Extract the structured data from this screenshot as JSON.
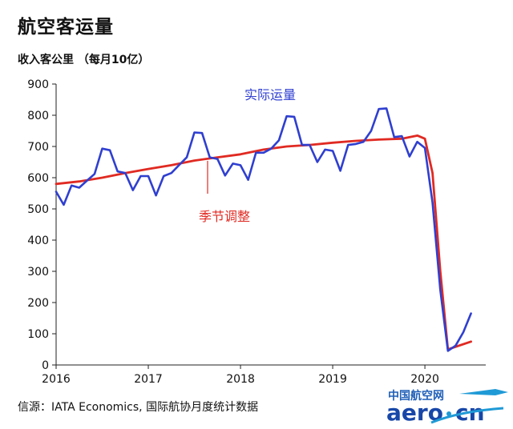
{
  "title": "航空客运量",
  "source": "信源：IATA Economics, 国际航协月度统计数据",
  "logo": {
    "top_text": "中国航空网",
    "bottom_text": "aero.cn"
  },
  "colors": {
    "actual": "#2f3fd0",
    "seasonal": "#e02a22",
    "axis": "#222222"
  },
  "chart_data": {
    "type": "line",
    "ylabel": "收入客公里 （每月10亿）",
    "ylim": [
      0,
      900
    ],
    "yticks": [
      "0",
      "100",
      "200",
      "300",
      "400",
      "500",
      "600",
      "700",
      "800",
      "900"
    ],
    "xlim": [
      2016,
      2020.66
    ],
    "xticks": [
      {
        "value": 2016,
        "label": "2016"
      },
      {
        "value": 2017,
        "label": "2017"
      },
      {
        "value": 2018,
        "label": "2018"
      },
      {
        "value": 2019,
        "label": "2019"
      },
      {
        "value": 2020,
        "label": "2020"
      }
    ],
    "grid": false,
    "series": [
      {
        "name": "实际运量",
        "color": "#2f3fd0",
        "x": [
          2016.0,
          2016.083,
          2016.167,
          2016.25,
          2016.333,
          2016.417,
          2016.5,
          2016.583,
          2016.667,
          2016.75,
          2016.833,
          2016.917,
          2017.0,
          2017.083,
          2017.167,
          2017.25,
          2017.333,
          2017.417,
          2017.5,
          2017.583,
          2017.667,
          2017.75,
          2017.833,
          2017.917,
          2018.0,
          2018.083,
          2018.167,
          2018.25,
          2018.333,
          2018.417,
          2018.5,
          2018.583,
          2018.667,
          2018.75,
          2018.833,
          2018.917,
          2019.0,
          2019.083,
          2019.167,
          2019.25,
          2019.333,
          2019.417,
          2019.5,
          2019.583,
          2019.667,
          2019.75,
          2019.833,
          2019.917,
          2020.0,
          2020.083,
          2020.167,
          2020.25,
          2020.333,
          2020.417,
          2020.5
        ],
        "y": [
          555,
          513,
          575,
          568,
          590,
          612,
          693,
          688,
          620,
          615,
          560,
          605,
          605,
          543,
          605,
          615,
          640,
          665,
          745,
          743,
          665,
          660,
          607,
          645,
          640,
          593,
          680,
          680,
          693,
          720,
          797,
          795,
          705,
          705,
          650,
          690,
          686,
          622,
          705,
          708,
          715,
          750,
          820,
          822,
          730,
          733,
          668,
          715,
          695,
          520,
          240,
          45,
          62,
          105,
          165
        ]
      },
      {
        "name": "季节调整",
        "color": "#e02a22",
        "x": [
          2016.0,
          2016.25,
          2016.5,
          2016.75,
          2017.0,
          2017.25,
          2017.5,
          2017.75,
          2018.0,
          2018.25,
          2018.5,
          2018.75,
          2019.0,
          2019.25,
          2019.5,
          2019.75,
          2019.92,
          2020.0,
          2020.083,
          2020.167,
          2020.25,
          2020.5
        ],
        "y": [
          580,
          588,
          600,
          615,
          628,
          640,
          655,
          665,
          675,
          690,
          700,
          705,
          712,
          718,
          722,
          725,
          735,
          725,
          615,
          300,
          50,
          75
        ]
      }
    ],
    "annotations": [
      {
        "text": "实际运量",
        "series": "实际运量"
      },
      {
        "text": "季节调整",
        "series": "季节调整"
      }
    ]
  }
}
